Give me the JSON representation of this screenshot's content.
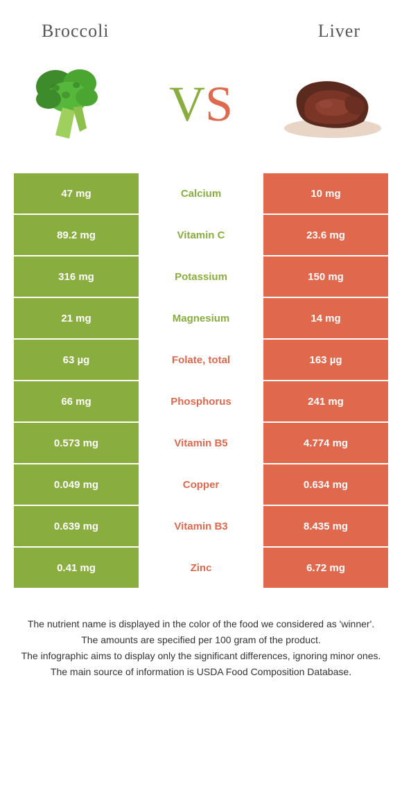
{
  "colors": {
    "left_bg": "#8aad3f",
    "right_bg": "#e0694d",
    "left_text": "#8aad3f",
    "right_text": "#e0694d",
    "cell_text": "#ffffff"
  },
  "header": {
    "left_title": "Broccoli",
    "right_title": "Liver"
  },
  "vs": {
    "v": "V",
    "s": "S"
  },
  "rows": [
    {
      "left": "47 mg",
      "label": "Calcium",
      "right": "10 mg",
      "winner": "left"
    },
    {
      "left": "89.2 mg",
      "label": "Vitamin C",
      "right": "23.6 mg",
      "winner": "left"
    },
    {
      "left": "316 mg",
      "label": "Potassium",
      "right": "150 mg",
      "winner": "left"
    },
    {
      "left": "21 mg",
      "label": "Magnesium",
      "right": "14 mg",
      "winner": "left"
    },
    {
      "left": "63 µg",
      "label": "Folate, total",
      "right": "163 µg",
      "winner": "right"
    },
    {
      "left": "66 mg",
      "label": "Phosphorus",
      "right": "241 mg",
      "winner": "right"
    },
    {
      "left": "0.573 mg",
      "label": "Vitamin B5",
      "right": "4.774 mg",
      "winner": "right"
    },
    {
      "left": "0.049 mg",
      "label": "Copper",
      "right": "0.634 mg",
      "winner": "right"
    },
    {
      "left": "0.639 mg",
      "label": "Vitamin B3",
      "right": "8.435 mg",
      "winner": "right"
    },
    {
      "left": "0.41 mg",
      "label": "Zinc",
      "right": "6.72 mg",
      "winner": "right"
    }
  ],
  "footnotes": [
    "The nutrient name is displayed in the color of the food we considered as 'winner'.",
    "The amounts are specified per 100 gram of the product.",
    "The infographic aims to display only the significant differences, ignoring minor ones.",
    "The main source of information is USDA Food Composition Database."
  ]
}
